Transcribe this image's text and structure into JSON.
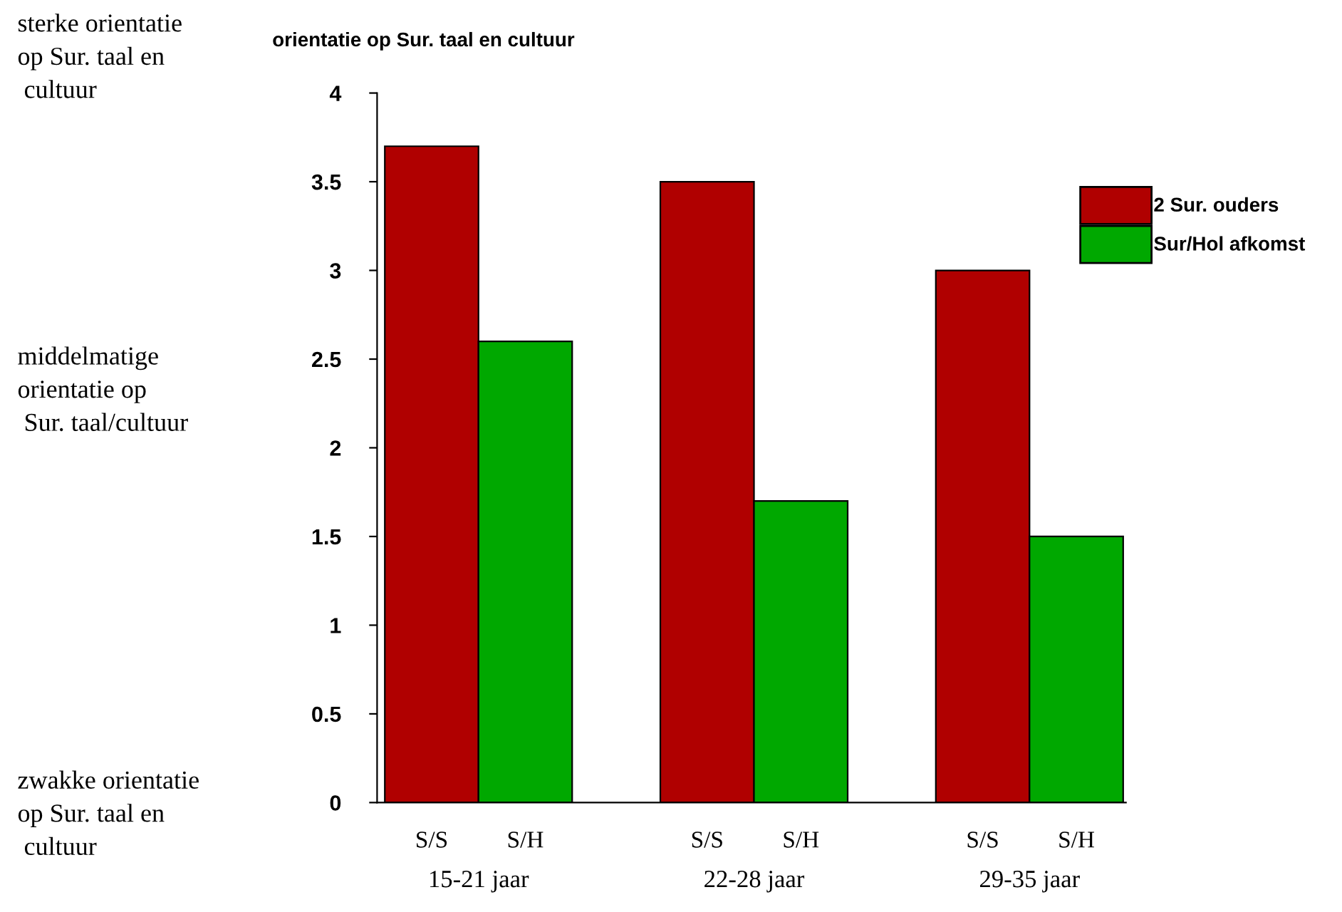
{
  "chart_data": {
    "type": "bar",
    "ylabel": "orientatie op Sur. taal en cultuur",
    "categories": [
      "15-21 jaar",
      "22-28 jaar",
      "29-35 jaar"
    ],
    "series": [
      {
        "name": "2 Sur. ouders",
        "color": "#b00000",
        "values": [
          3.7,
          3.5,
          3.0
        ]
      },
      {
        "name": "Sur/Hol afkomst",
        "color": "#00a800",
        "values": [
          2.6,
          1.7,
          1.5
        ]
      }
    ],
    "ylim": [
      0,
      4
    ],
    "yticks": [
      0,
      0.5,
      1,
      1.5,
      2,
      2.5,
      3,
      3.5,
      4
    ],
    "grid": false,
    "legend": "right",
    "annotations": [
      "S/S",
      "S/H",
      "S/S",
      "S/H",
      "S/S",
      "S/H",
      "sterke orientatie\nop Sur. taal en\n cultuur",
      "middelmatige\norientatie op\n Sur. taal/cultuur",
      "zwakke orientatie\nop Sur. taal en\n cultuur"
    ]
  }
}
